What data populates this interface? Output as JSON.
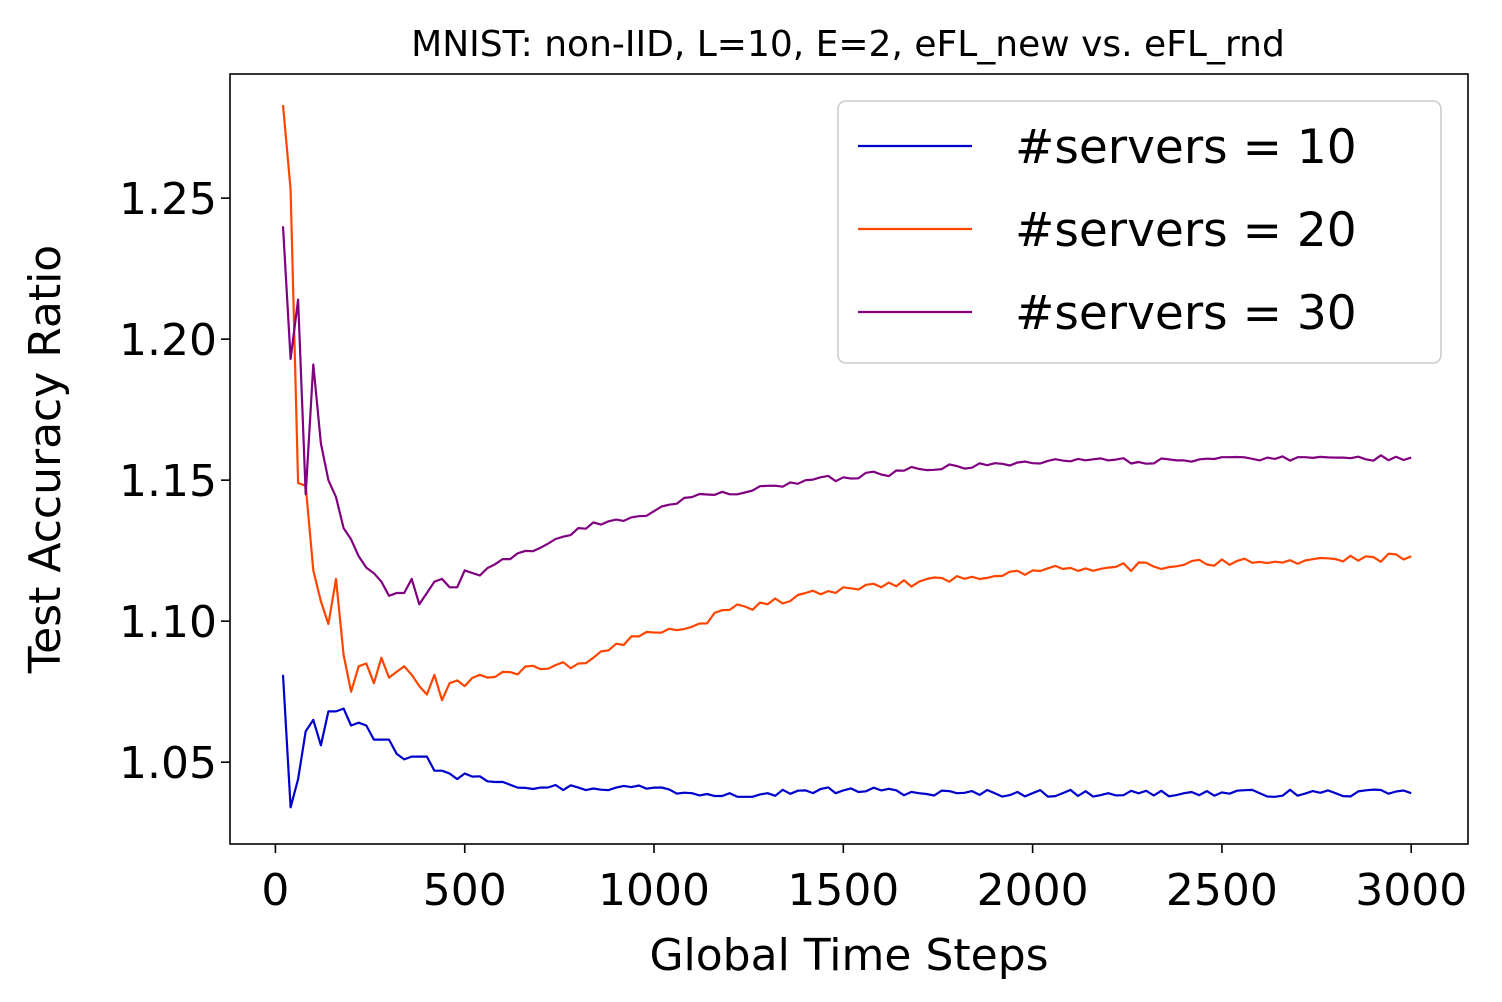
{
  "chart_data": {
    "type": "line",
    "title": "MNIST: non-IID, L=10, E=2, eFL_new vs. eFL_rnd",
    "xlabel": "Global Time Steps",
    "ylabel": "Test Accuracy Ratio",
    "xlim": [
      -120,
      3150
    ],
    "ylim": [
      1.021,
      1.294
    ],
    "xticks": [
      0,
      500,
      1000,
      1500,
      2000,
      2500,
      3000
    ],
    "xtick_labels": [
      "0",
      "500",
      "1000",
      "1500",
      "2000",
      "2500",
      "3000"
    ],
    "yticks": [
      1.05,
      1.1,
      1.15,
      1.2,
      1.25
    ],
    "ytick_labels": [
      "1.05",
      "1.10",
      "1.15",
      "1.20",
      "1.25"
    ],
    "grid": false,
    "legend_position": "top-right",
    "x_start": 20,
    "x_step": 20,
    "series": [
      {
        "name": "#servers = 10",
        "color": "#0000cd",
        "keypoints": [
          [
            20,
            1.081
          ],
          [
            40,
            1.034
          ],
          [
            60,
            1.044
          ],
          [
            80,
            1.061
          ],
          [
            100,
            1.065
          ],
          [
            120,
            1.056
          ],
          [
            140,
            1.068
          ],
          [
            160,
            1.068
          ],
          [
            180,
            1.069
          ],
          [
            200,
            1.063
          ],
          [
            220,
            1.064
          ],
          [
            240,
            1.063
          ],
          [
            260,
            1.058
          ],
          [
            280,
            1.058
          ],
          [
            300,
            1.058
          ],
          [
            320,
            1.053
          ],
          [
            340,
            1.051
          ],
          [
            360,
            1.052
          ],
          [
            380,
            1.052
          ],
          [
            400,
            1.052
          ],
          [
            420,
            1.047
          ],
          [
            440,
            1.047
          ],
          [
            460,
            1.046
          ],
          [
            480,
            1.044
          ],
          [
            500,
            1.046
          ],
          [
            540,
            1.045
          ],
          [
            600,
            1.043
          ],
          [
            700,
            1.041
          ],
          [
            800,
            1.041
          ],
          [
            900,
            1.041
          ],
          [
            1000,
            1.041
          ],
          [
            1100,
            1.039
          ],
          [
            1200,
            1.039
          ],
          [
            1300,
            1.039
          ],
          [
            1400,
            1.04
          ],
          [
            1500,
            1.04
          ],
          [
            1600,
            1.04
          ],
          [
            1700,
            1.039
          ],
          [
            1800,
            1.039
          ],
          [
            2000,
            1.039
          ],
          [
            2200,
            1.039
          ],
          [
            2400,
            1.039
          ],
          [
            2600,
            1.039
          ],
          [
            2800,
            1.039
          ],
          [
            3000,
            1.039
          ]
        ],
        "noise": 0.0013
      },
      {
        "name": "#servers = 20",
        "color": "#ff4500",
        "keypoints": [
          [
            20,
            1.283
          ],
          [
            40,
            1.253
          ],
          [
            60,
            1.149
          ],
          [
            80,
            1.148
          ],
          [
            100,
            1.118
          ],
          [
            120,
            1.107
          ],
          [
            140,
            1.099
          ],
          [
            160,
            1.115
          ],
          [
            180,
            1.088
          ],
          [
            200,
            1.075
          ],
          [
            220,
            1.084
          ],
          [
            240,
            1.085
          ],
          [
            260,
            1.078
          ],
          [
            280,
            1.087
          ],
          [
            300,
            1.08
          ],
          [
            320,
            1.082
          ],
          [
            340,
            1.084
          ],
          [
            360,
            1.081
          ],
          [
            380,
            1.077
          ],
          [
            400,
            1.074
          ],
          [
            420,
            1.081
          ],
          [
            440,
            1.072
          ],
          [
            460,
            1.078
          ],
          [
            480,
            1.079
          ],
          [
            500,
            1.077
          ],
          [
            540,
            1.081
          ],
          [
            600,
            1.082
          ],
          [
            700,
            1.083
          ],
          [
            800,
            1.085
          ],
          [
            900,
            1.092
          ],
          [
            1000,
            1.096
          ],
          [
            1100,
            1.098
          ],
          [
            1200,
            1.104
          ],
          [
            1300,
            1.106
          ],
          [
            1400,
            1.11
          ],
          [
            1500,
            1.112
          ],
          [
            1600,
            1.112
          ],
          [
            1700,
            1.114
          ],
          [
            1800,
            1.116
          ],
          [
            1900,
            1.116
          ],
          [
            2000,
            1.118
          ],
          [
            2200,
            1.119
          ],
          [
            2400,
            1.12
          ],
          [
            2600,
            1.121
          ],
          [
            2800,
            1.122
          ],
          [
            3000,
            1.123
          ]
        ],
        "noise": 0.0016
      },
      {
        "name": "#servers = 30",
        "color": "#800080",
        "keypoints": [
          [
            20,
            1.24
          ],
          [
            40,
            1.193
          ],
          [
            60,
            1.214
          ],
          [
            80,
            1.145
          ],
          [
            100,
            1.191
          ],
          [
            120,
            1.163
          ],
          [
            140,
            1.15
          ],
          [
            160,
            1.144
          ],
          [
            180,
            1.133
          ],
          [
            200,
            1.129
          ],
          [
            220,
            1.123
          ],
          [
            240,
            1.119
          ],
          [
            260,
            1.117
          ],
          [
            280,
            1.114
          ],
          [
            300,
            1.109
          ],
          [
            320,
            1.11
          ],
          [
            340,
            1.11
          ],
          [
            360,
            1.115
          ],
          [
            380,
            1.106
          ],
          [
            400,
            1.11
          ],
          [
            420,
            1.114
          ],
          [
            440,
            1.115
          ],
          [
            460,
            1.112
          ],
          [
            480,
            1.112
          ],
          [
            500,
            1.118
          ],
          [
            550,
            1.117
          ],
          [
            600,
            1.122
          ],
          [
            700,
            1.126
          ],
          [
            800,
            1.133
          ],
          [
            900,
            1.136
          ],
          [
            1000,
            1.139
          ],
          [
            1100,
            1.144
          ],
          [
            1200,
            1.145
          ],
          [
            1300,
            1.148
          ],
          [
            1400,
            1.15
          ],
          [
            1500,
            1.151
          ],
          [
            1600,
            1.152
          ],
          [
            1700,
            1.154
          ],
          [
            1800,
            1.155
          ],
          [
            1900,
            1.156
          ],
          [
            2000,
            1.156
          ],
          [
            2200,
            1.157
          ],
          [
            2400,
            1.157
          ],
          [
            2600,
            1.157
          ],
          [
            2800,
            1.158
          ],
          [
            3000,
            1.158
          ]
        ],
        "noise": 0.0012
      }
    ]
  }
}
